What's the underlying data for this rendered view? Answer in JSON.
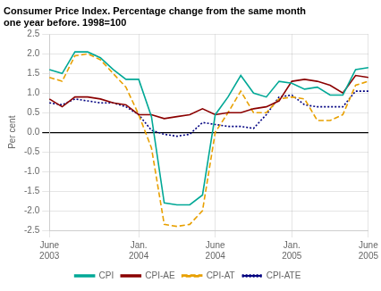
{
  "chart_data": {
    "type": "line",
    "title": "Consumer Price Index. Percentage change from the same month\none year before. 1998=100",
    "ylabel": "Per cent",
    "categories": [
      "June\n2003",
      null,
      null,
      null,
      null,
      null,
      null,
      "Jan.\n2004",
      null,
      null,
      null,
      null,
      null,
      "June\n2004",
      null,
      null,
      null,
      null,
      null,
      "Jan.\n2005",
      null,
      null,
      null,
      null,
      null,
      "June\n2005"
    ],
    "series": [
      {
        "name": "CPI",
        "color": "#00a896",
        "line_style": "solid",
        "values": [
          1.6,
          1.5,
          2.05,
          2.05,
          1.9,
          1.6,
          1.35,
          1.35,
          0.4,
          -1.8,
          -1.85,
          -1.85,
          -1.6,
          0.45,
          0.9,
          1.45,
          1.0,
          0.9,
          1.3,
          1.25,
          1.1,
          1.15,
          0.95,
          0.95,
          1.6,
          1.65
        ]
      },
      {
        "name": "CPI-AE",
        "color": "#8b0000",
        "line_style": "solid",
        "values": [
          0.85,
          0.65,
          0.9,
          0.9,
          0.85,
          0.75,
          0.7,
          0.45,
          0.45,
          0.35,
          0.4,
          0.45,
          0.6,
          0.45,
          0.5,
          0.5,
          0.6,
          0.65,
          0.8,
          1.3,
          1.35,
          1.3,
          1.2,
          1.0,
          1.45,
          1.4
        ]
      },
      {
        "name": "CPI-AT",
        "color": "#e8a000",
        "line_style": "dashed",
        "values": [
          1.4,
          1.3,
          1.95,
          2.0,
          1.85,
          1.5,
          1.15,
          0.45,
          -0.4,
          -2.35,
          -2.4,
          -2.35,
          -2.0,
          0.0,
          0.5,
          1.05,
          0.5,
          0.5,
          0.85,
          0.9,
          0.85,
          0.3,
          0.3,
          0.45,
          1.2,
          1.3
        ]
      },
      {
        "name": "CPI-ATE",
        "color": "#000080",
        "line_style": "dotted",
        "values": [
          0.75,
          0.7,
          0.85,
          0.8,
          0.75,
          0.75,
          0.65,
          0.45,
          0.05,
          -0.05,
          -0.1,
          -0.05,
          0.25,
          0.2,
          0.15,
          0.15,
          0.1,
          0.45,
          0.9,
          0.95,
          0.7,
          0.65,
          0.65,
          0.65,
          1.05,
          1.05
        ]
      }
    ],
    "ylim": [
      -2.5,
      2.5
    ],
    "yticks": [
      -2.5,
      {
        "value": -2,
        "label": "-2.0"
      },
      -1.5,
      {
        "value": -1,
        "label": "-1.0"
      },
      -0.5,
      {
        "value": 0,
        "label": "0.0"
      },
      0.5,
      {
        "value": 1,
        "label": "1.0"
      },
      1.5,
      {
        "value": 2,
        "label": "2.0"
      },
      2.5
    ],
    "grid": true,
    "legend": "bottom"
  }
}
